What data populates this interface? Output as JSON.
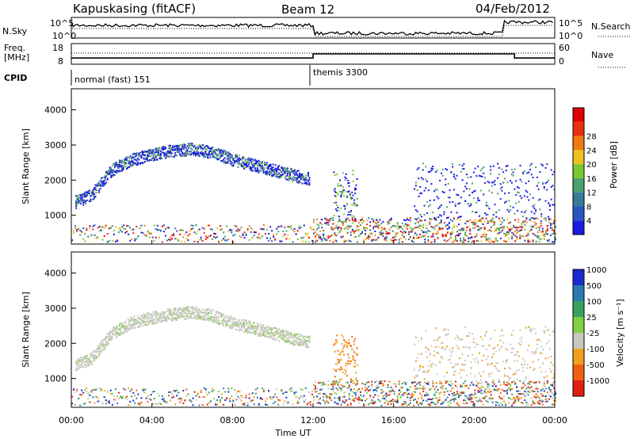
{
  "header": {
    "station": "Kapuskasing (fitACF)",
    "beam": "Beam 12",
    "date": "04/Feb/2012"
  },
  "summary": {
    "nsky_label": "N.Sky",
    "nsearch_label": "N.Search",
    "noise_ticks": [
      "10^5",
      "10^0"
    ],
    "freq_label_1": "Freq.",
    "freq_label_2": "[MHz]",
    "freq_ticks": [
      "18",
      "8"
    ],
    "nave_label": "Nave",
    "nave_ticks": [
      "60",
      "0"
    ],
    "cpid_label": "CPID",
    "cpid_segments": [
      {
        "label": "normal (fast) 151",
        "start_hour": 0,
        "end_hour": 12
      },
      {
        "label": "themis 3300",
        "start_hour": 12,
        "end_hour": 24
      }
    ]
  },
  "power_panel": {
    "ylabel": "Slant Range [km]",
    "yticks": [
      "1000",
      "2000",
      "3000",
      "4000"
    ],
    "colorbar_label": "Power [dB]",
    "colorbar_ticks": [
      "4",
      "8",
      "12",
      "16",
      "20",
      "24",
      "28"
    ],
    "colors": [
      "#1a1ae0",
      "#2a55c0",
      "#3a7a9a",
      "#4aa070",
      "#7ac830",
      "#f0c020",
      "#f07a10",
      "#e83010",
      "#e00000"
    ]
  },
  "velocity_panel": {
    "ylabel": "Slant Range [km]",
    "yticks": [
      "1000",
      "2000",
      "3000",
      "4000"
    ],
    "colorbar_label": "Velocity [m s⁻¹]",
    "colorbar_ticks": [
      "1000",
      "500",
      "100",
      "25",
      "-25",
      "-100",
      "-500",
      "-1000"
    ],
    "colors": [
      "#1a2ad0",
      "#2a7ab0",
      "#3aa060",
      "#80d040",
      "#c8c8c0",
      "#f0a020",
      "#f06010",
      "#e02010"
    ]
  },
  "xaxis": {
    "label": "Time UT",
    "ticks": [
      "00:00",
      "04:00",
      "08:00",
      "12:00",
      "16:00",
      "20:00",
      "00:00"
    ]
  },
  "chart_data": {
    "type": "heatmap",
    "title": "Kapuskasing (fitACF) Beam 12 04/Feb/2012",
    "xlabel": "Time UT",
    "ylabel": "Slant Range [km]",
    "xlim_hours": [
      0,
      24
    ],
    "ylim_km": [
      180,
      4600
    ],
    "frequency_mhz": [
      {
        "start_hour": 0,
        "end_hour": 12,
        "value": 11
      },
      {
        "start_hour": 12,
        "end_hour": 22,
        "value": 13
      },
      {
        "start_hour": 22,
        "end_hour": 24,
        "value": 11
      }
    ],
    "power_features": [
      {
        "name": "main band",
        "points": [
          [
            0.2,
            1400
          ],
          [
            1,
            1600
          ],
          [
            2,
            2300
          ],
          [
            3,
            2600
          ],
          [
            4,
            2750
          ],
          [
            5,
            2850
          ],
          [
            6,
            2900
          ],
          [
            7,
            2800
          ],
          [
            8,
            2600
          ],
          [
            9,
            2450
          ],
          [
            10,
            2300
          ],
          [
            11,
            2150
          ],
          [
            11.8,
            2050
          ]
        ],
        "power_db": 10
      },
      {
        "name": "backscatter band",
        "points": [
          [
            13,
            1600
          ],
          [
            13.5,
            2100
          ]
        ],
        "power_db": 14
      },
      {
        "name": "late scatter",
        "points": [
          [
            18,
            1800
          ],
          [
            20,
            2000
          ],
          [
            22,
            2200
          ],
          [
            23.5,
            1400
          ]
        ],
        "power_db": 8
      }
    ],
    "velocity_features": [
      {
        "name": "main band",
        "velocity_ms": 0
      },
      {
        "name": "13-14 UT patch",
        "velocity_ms": -300
      },
      {
        "name": "21-22 UT patch",
        "velocity_ms": -200
      }
    ]
  }
}
